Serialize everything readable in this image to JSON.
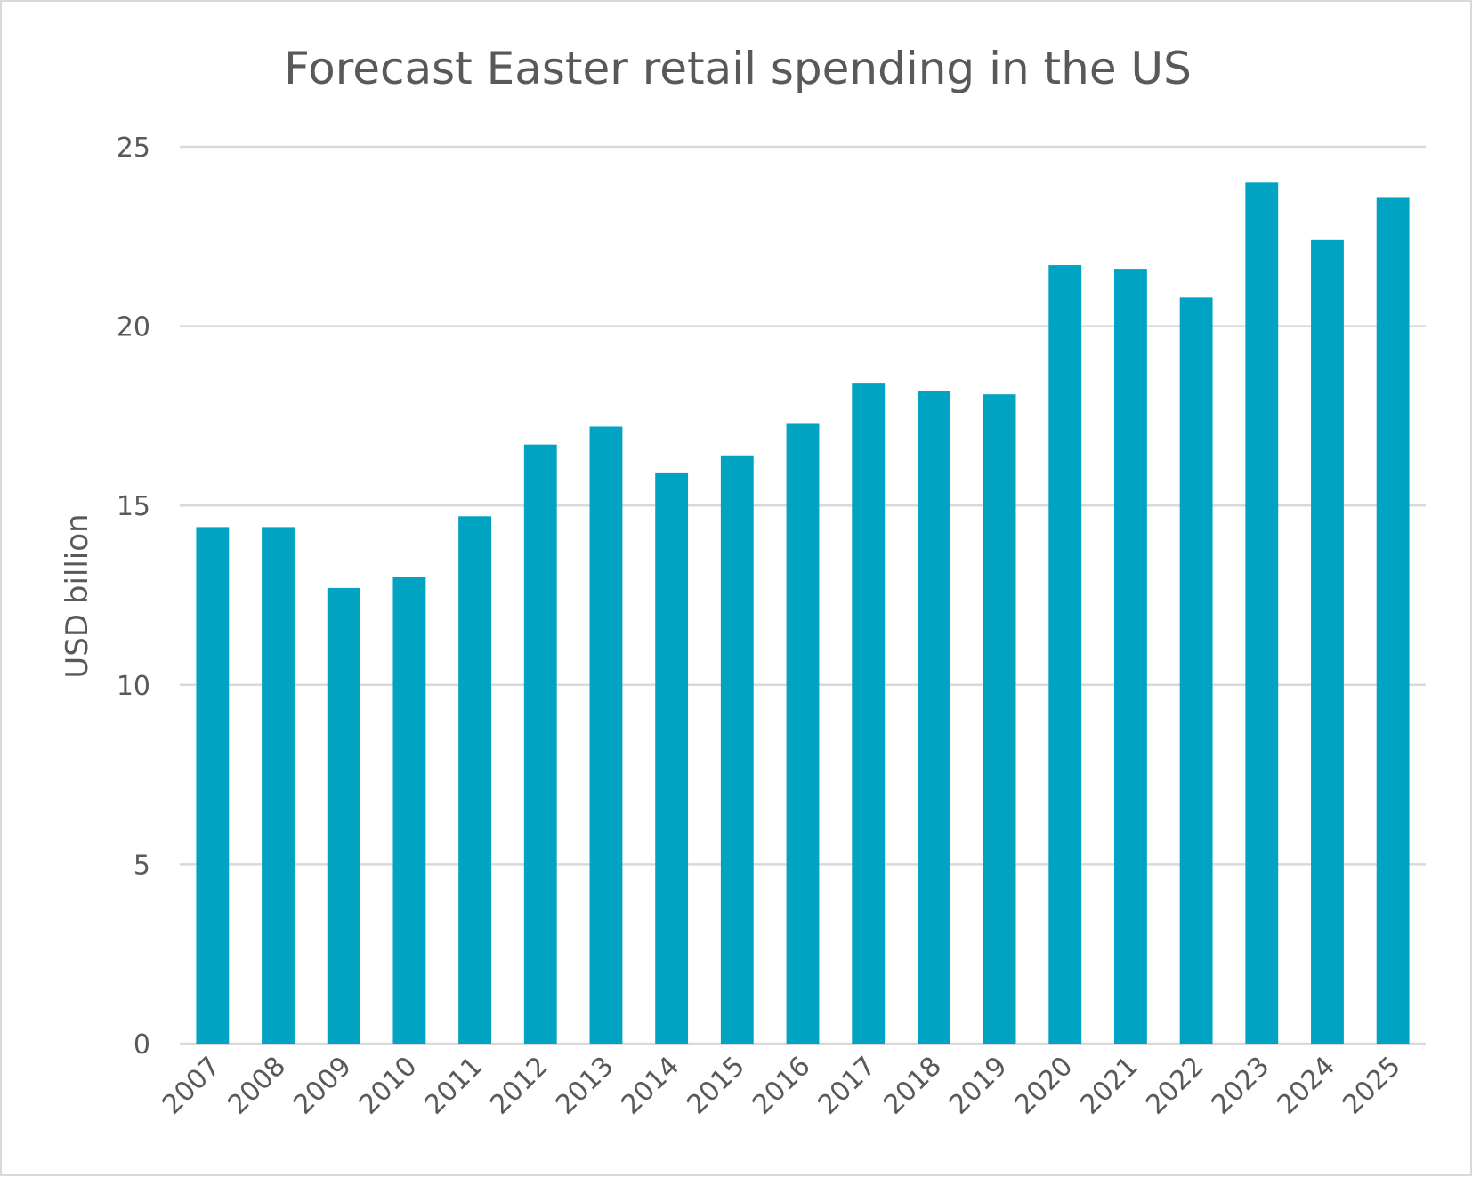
{
  "chart_data": {
    "type": "bar",
    "title": "Forecast Easter retail spending in the US",
    "xlabel": "",
    "ylabel": "USD billion",
    "ylim": [
      0,
      25
    ],
    "yticks": [
      0,
      5,
      10,
      15,
      20,
      25
    ],
    "grid": true,
    "legend": "none",
    "bar_color": "#00A3C1",
    "categories": [
      "2007",
      "2008",
      "2009",
      "2010",
      "2011",
      "2012",
      "2013",
      "2014",
      "2015",
      "2016",
      "2017",
      "2018",
      "2019",
      "2020",
      "2021",
      "2022",
      "2023",
      "2024",
      "2025"
    ],
    "values": [
      14.4,
      14.4,
      12.7,
      13.0,
      14.7,
      16.7,
      17.2,
      15.9,
      16.4,
      17.3,
      18.4,
      18.2,
      18.1,
      21.7,
      21.6,
      20.8,
      24.0,
      22.4,
      23.6
    ]
  }
}
